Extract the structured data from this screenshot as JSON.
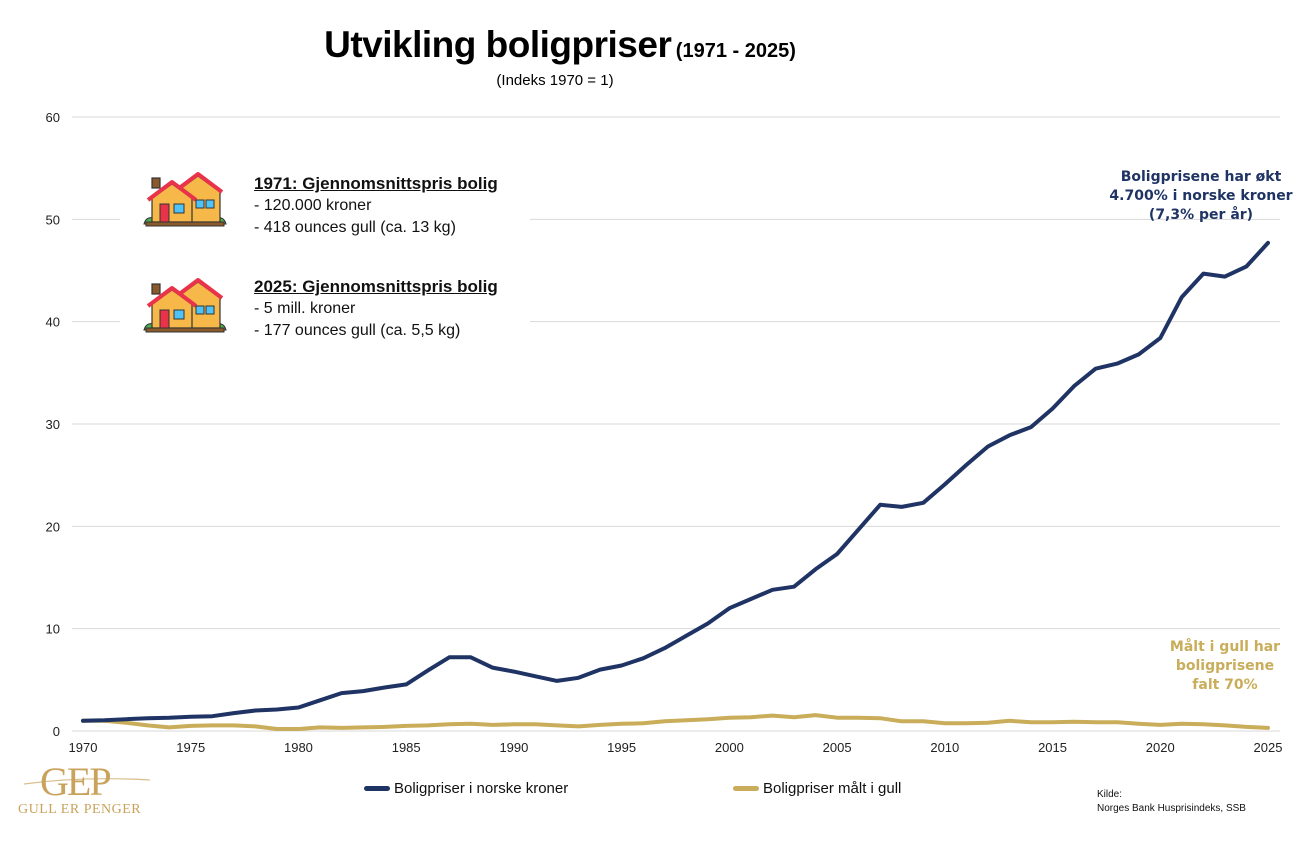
{
  "title": {
    "main": "Utvikling boligpriser",
    "range": "(1971 - 2025)",
    "subtitle": "(Indeks 1970 = 1)"
  },
  "info_boxes": [
    {
      "icon": "house-icon",
      "heading": "1971: Gjennomsnittspris bolig",
      "lines": [
        "- 120.000 kroner",
        "- 418 ounces gull (ca. 13 kg)"
      ]
    },
    {
      "icon": "house-icon",
      "heading": "2025: Gjennomsnittspris bolig",
      "lines": [
        "- 5 mill. kroner",
        "- 177 ounces gull (ca. 5,5 kg)"
      ]
    }
  ],
  "annotations": {
    "blue": [
      "Boligprisene har økt",
      "4.700% i norske kroner",
      "(7,3% per år)"
    ],
    "gold": [
      "Målt i gull har",
      "boligprisene",
      "falt 70%"
    ]
  },
  "source": {
    "label": "Kilde:",
    "text": "Norges Bank Husprisindeks, SSB"
  },
  "logo": {
    "mark": "GEP",
    "text": "GULL ER PENGER"
  },
  "colors": {
    "nok": "#1f3464",
    "gold": "#c9ad5a",
    "grid": "#d9d9d9"
  },
  "chart_data": {
    "type": "line",
    "title": "Utvikling boligpriser (1971 - 2025)",
    "subtitle": "(Indeks 1970 = 1)",
    "xlabel": "",
    "ylabel": "",
    "ylim": [
      0,
      60
    ],
    "yticks": [
      0,
      10,
      20,
      30,
      40,
      50,
      60
    ],
    "xlim": [
      1970,
      2025
    ],
    "xticks": [
      1970,
      1975,
      1980,
      1985,
      1990,
      1995,
      2000,
      2005,
      2010,
      2015,
      2020,
      2025
    ],
    "grid": true,
    "legend_position": "bottom",
    "x": [
      1970,
      1971,
      1972,
      1973,
      1974,
      1975,
      1976,
      1977,
      1978,
      1979,
      1980,
      1981,
      1982,
      1983,
      1984,
      1985,
      1986,
      1987,
      1988,
      1989,
      1990,
      1991,
      1992,
      1993,
      1994,
      1995,
      1996,
      1997,
      1998,
      1999,
      2000,
      2001,
      2002,
      2003,
      2004,
      2005,
      2006,
      2007,
      2008,
      2009,
      2010,
      2011,
      2012,
      2013,
      2014,
      2015,
      2016,
      2017,
      2018,
      2019,
      2020,
      2021,
      2022,
      2023,
      2024,
      2025
    ],
    "series": [
      {
        "name": "Boligpriser i norske kroner",
        "color": "#1f3464",
        "values": [
          1.0,
          1.05,
          1.15,
          1.25,
          1.3,
          1.4,
          1.45,
          1.75,
          2.0,
          2.1,
          2.3,
          3.0,
          3.7,
          3.9,
          4.25,
          4.55,
          5.9,
          7.2,
          7.2,
          6.2,
          5.8,
          5.35,
          4.9,
          5.2,
          6.0,
          6.4,
          7.1,
          8.1,
          9.3,
          10.5,
          12.0,
          12.9,
          13.8,
          14.1,
          15.8,
          17.3,
          19.7,
          22.1,
          21.9,
          22.3,
          24.1,
          26.0,
          27.8,
          28.9,
          29.7,
          31.5,
          33.7,
          35.4,
          35.9,
          36.8,
          38.4,
          42.4,
          44.7,
          44.4,
          45.4,
          47.7
        ]
      },
      {
        "name": "Boligpriser målt i gull",
        "color": "#c9ad5a",
        "values": [
          1.0,
          1.0,
          0.8,
          0.55,
          0.35,
          0.5,
          0.55,
          0.55,
          0.45,
          0.2,
          0.2,
          0.35,
          0.3,
          0.35,
          0.4,
          0.5,
          0.55,
          0.65,
          0.7,
          0.6,
          0.65,
          0.65,
          0.55,
          0.45,
          0.6,
          0.7,
          0.75,
          0.95,
          1.05,
          1.15,
          1.3,
          1.35,
          1.5,
          1.35,
          1.55,
          1.3,
          1.3,
          1.25,
          0.95,
          0.95,
          0.75,
          0.75,
          0.8,
          1.0,
          0.85,
          0.85,
          0.9,
          0.85,
          0.85,
          0.7,
          0.6,
          0.7,
          0.65,
          0.55,
          0.4,
          0.3
        ]
      }
    ]
  }
}
